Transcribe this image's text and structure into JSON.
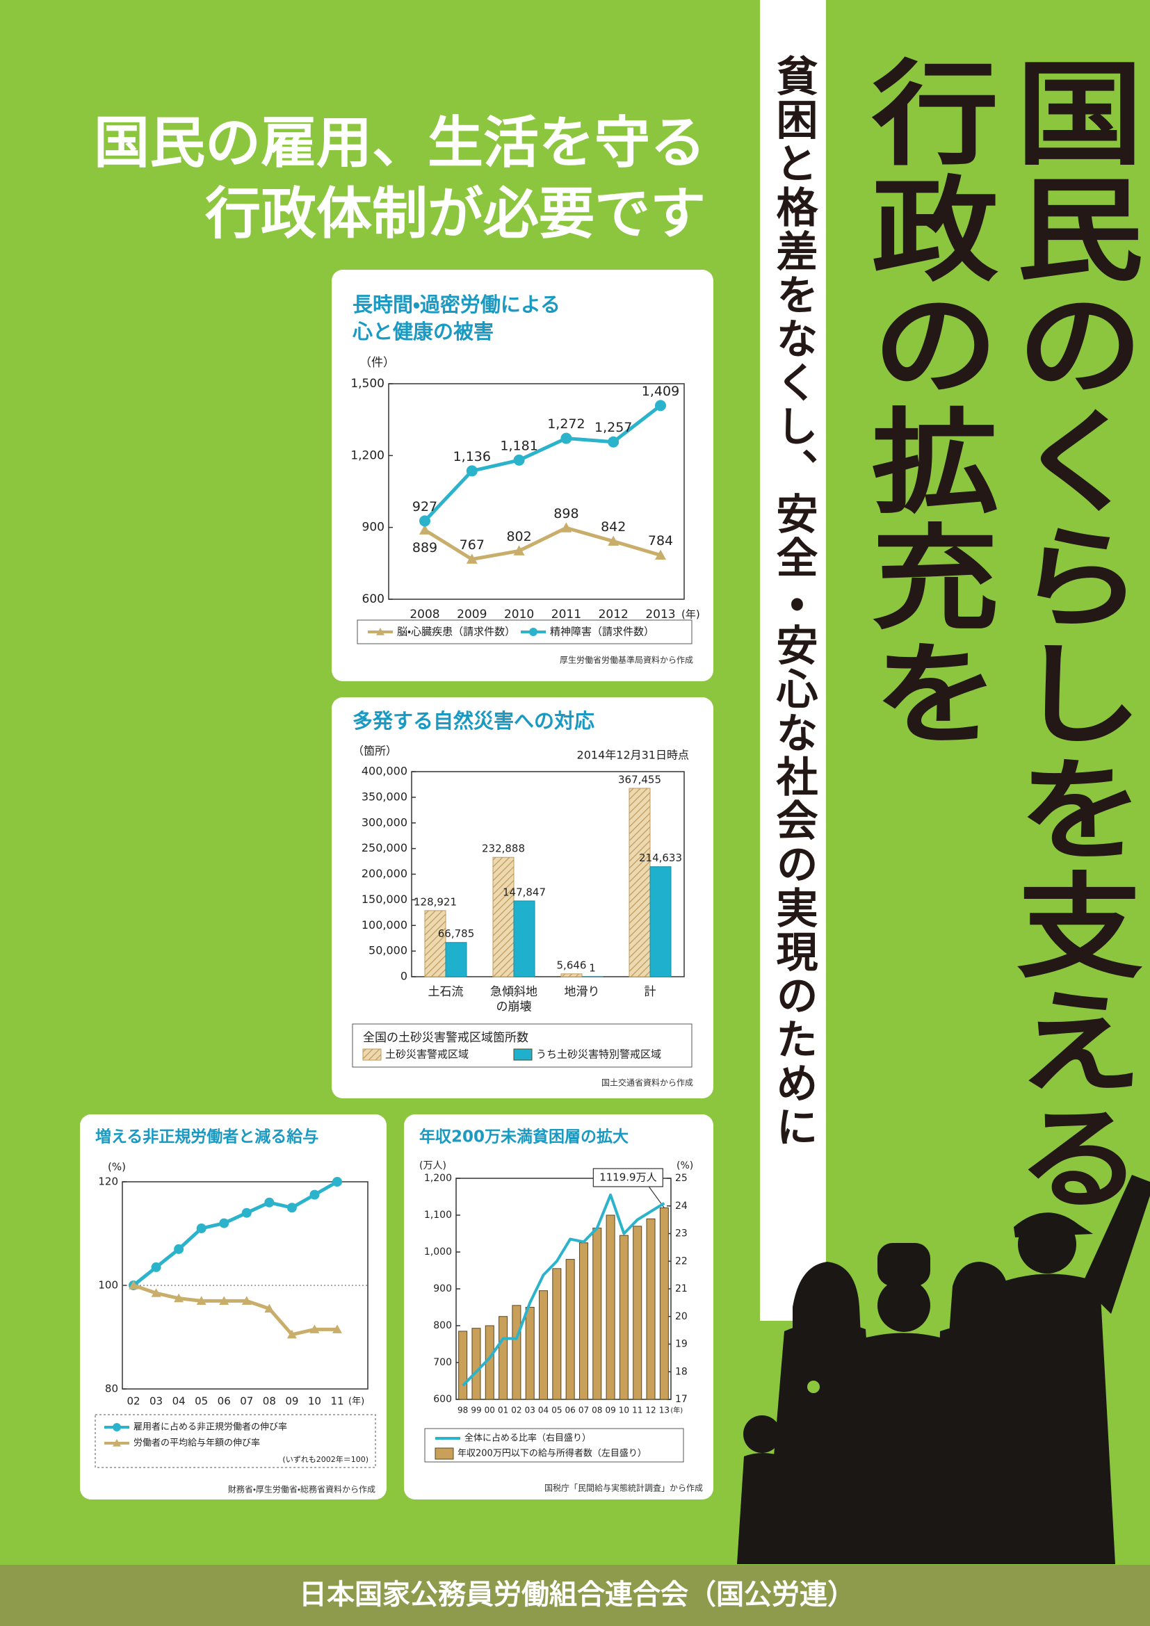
{
  "header": {
    "lines": [
      "国民の雇用、生活を守る",
      "行政体制が必要です"
    ]
  },
  "main_title": {
    "columns": [
      "国民のくらしを支える",
      "行政の拡充を"
    ]
  },
  "subtitle": "貧困と格差をなくし、安全・安心な社会の実現のために",
  "footer": "日本国家公務員労働組合連合会（国公労連）",
  "chart_data": [
    {
      "type": "line",
      "title": [
        "長時間・過密労働による",
        "心と健康の被害"
      ],
      "y_unit": "（件）",
      "x_unit": "(年)",
      "categories": [
        "2008",
        "2009",
        "2010",
        "2011",
        "2012",
        "2013"
      ],
      "ylim": [
        600,
        1500
      ],
      "yticks": [
        600,
        900,
        {
          "value": 1200,
          "label": "1,200"
        },
        {
          "value": 1500,
          "label": "1,500"
        }
      ],
      "data_labels": true,
      "series": [
        {
          "name": "脳・心臓疾患（請求件数）",
          "color": "#c9ad6a",
          "marker": "triangle",
          "values": [
            889,
            767,
            802,
            898,
            842,
            784
          ]
        },
        {
          "name": "精神障害（請求件数）",
          "color": "#2bb3cc",
          "marker": "circle",
          "values": [
            927,
            1136,
            1181,
            1272,
            1257,
            1409
          ],
          "value_labels": [
            "927",
            "1,136",
            "1,181",
            "1,272",
            "1,257",
            "1,409"
          ]
        }
      ],
      "source": "厚生労働省労働基準局資料から作成"
    },
    {
      "type": "bar",
      "title": "多発する自然災害への対応",
      "y_unit": "（箇所）",
      "note": "2014年12月31日時点",
      "categories": [
        "土石流",
        "急傾斜地\nの崩壊",
        "地滑り",
        "計"
      ],
      "ylim": [
        0,
        400000
      ],
      "yticks": [
        0,
        {
          "value": 50000,
          "label": "50,000"
        },
        {
          "value": 100000,
          "label": "100,000"
        },
        {
          "value": 150000,
          "label": "150,000"
        },
        {
          "value": 200000,
          "label": "200,000"
        },
        {
          "value": 250000,
          "label": "250,000"
        },
        {
          "value": 300000,
          "label": "300,000"
        },
        {
          "value": 350000,
          "label": "350,000"
        },
        {
          "value": 400000,
          "label": "400,000"
        }
      ],
      "legend_title": "全国の土砂災害警戒区域箇所数",
      "series": [
        {
          "name": "土砂災害警戒区域",
          "color": "#ecd9b0",
          "hatch": true,
          "values": [
            128921,
            232888,
            5646,
            367455
          ],
          "value_labels": [
            "128,921",
            "232,888",
            "5,646",
            "367,455"
          ]
        },
        {
          "name": "うち土砂災害特別警戒区域",
          "color": "#1eb0cc",
          "values": [
            66785,
            147847,
            1,
            214633
          ],
          "value_labels": [
            "66,785",
            "147,847",
            "1",
            "214,633"
          ]
        }
      ],
      "source": "国土交通省資料から作成"
    },
    {
      "type": "line",
      "title": "増える非正規労働者と減る給与",
      "y_unit": "(%)",
      "x_unit": "(年)",
      "categories": [
        "02",
        "03",
        "04",
        "05",
        "06",
        "07",
        "08",
        "09",
        "10",
        "11"
      ],
      "ylim": [
        80,
        120
      ],
      "yticks": [
        80,
        100,
        120
      ],
      "grid": true,
      "series": [
        {
          "name": "雇用者に占める非正規労働者の伸び率",
          "color": "#2bb3cc",
          "marker": "circle",
          "values": [
            100,
            103.5,
            107,
            111,
            112,
            114,
            116,
            115,
            117.5,
            120
          ]
        },
        {
          "name": "労働者の平均給与年額の伸び率",
          "color": "#c9ad6a",
          "marker": "triangle",
          "values": [
            100,
            98.5,
            97.5,
            97,
            97,
            97,
            95.5,
            90.5,
            91.5,
            91.5
          ]
        }
      ],
      "legend_note": "(いずれも2002年＝100)",
      "source": "財務省・厚生労働省・総務省資料から作成"
    },
    {
      "type": "combo",
      "title": "年収200万未満貧困層の拡大",
      "y_unit": "(万人)",
      "y2_unit": "(%)",
      "x_unit": "(年)",
      "categories": [
        "98",
        "99",
        "00",
        "01",
        "02",
        "03",
        "04",
        "05",
        "06",
        "07",
        "08",
        "09",
        "10",
        "11",
        "12",
        "13"
      ],
      "ylim": [
        600,
        1200
      ],
      "yticks": [
        600,
        700,
        800,
        900,
        {
          "value": 1000,
          "label": "1,000"
        },
        {
          "value": 1100,
          "label": "1,100"
        },
        {
          "value": 1200,
          "label": "1,200"
        }
      ],
      "y2lim": [
        17,
        25
      ],
      "y2ticks": [
        17,
        18,
        19,
        20,
        21,
        22,
        23,
        24,
        25
      ],
      "series": [
        {
          "name": "全体に占める比率（右目盛り）",
          "type": "line",
          "axis": "y2",
          "color": "#2bb3cc",
          "values": [
            17.5,
            18.0,
            18.5,
            19.2,
            19.2,
            20.5,
            21.5,
            22.0,
            22.8,
            22.7,
            23.2,
            24.4,
            23.0,
            23.5,
            23.8,
            24.1
          ]
        },
        {
          "name": "年収200万円以下の給与所得者数（左目盛り）",
          "type": "bar",
          "color": "#c9a05a",
          "values": [
            785,
            793,
            800,
            825,
            855,
            850,
            895,
            955,
            980,
            1025,
            1065,
            1100,
            1045,
            1070,
            1090,
            1119.9
          ],
          "value_labels": [
            null,
            null,
            null,
            null,
            null,
            null,
            null,
            null,
            null,
            null,
            null,
            null,
            null,
            null,
            null,
            "1119.9万人"
          ]
        }
      ],
      "source": "国税庁「民間給与実態統計調査」から作成"
    }
  ]
}
